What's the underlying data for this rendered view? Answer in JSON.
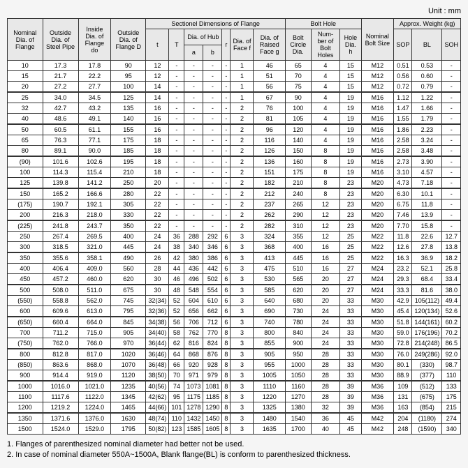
{
  "unit": "Unit : mm",
  "headers": {
    "nominal": "Nominal Dia. of Flange",
    "outside_pipe": "Outside Dia. of Steel Pipe",
    "inside": "Inside Dia. of Flange do",
    "outside_flange": "Outside Dia. of Flange D",
    "sectional": "Sectionel Dimensions of Flange",
    "bolthole": "Bolt Hole",
    "nominal_bolt": "Nominal Bolt Size",
    "approx": "Approx. Weight (kg)",
    "t": "t",
    "T": "T",
    "hub": "Dia. of Hub",
    "a": "a",
    "b": "b",
    "r": "r",
    "face": "Dia. of Face f",
    "raised": "Dia. of Raised Face g",
    "circle": "Bolt Circle Dia.",
    "num": "Num-ber of Bolt Holes",
    "holedia": "Hole Dia. h",
    "sop": "SOP",
    "bl": "BL",
    "soh": "SOH"
  },
  "rows": [
    [
      "10",
      "17.3",
      "17.8",
      "90",
      "12",
      "-",
      "-",
      "-",
      "-",
      "1",
      "46",
      "65",
      "4",
      "15",
      "M12",
      "0.51",
      "0.53",
      "-"
    ],
    [
      "15",
      "21.7",
      "22.2",
      "95",
      "12",
      "-",
      "-",
      "-",
      "-",
      "1",
      "51",
      "70",
      "4",
      "15",
      "M12",
      "0.56",
      "0.60",
      "-"
    ],
    [
      "20",
      "27.2",
      "27.7",
      "100",
      "14",
      "-",
      "-",
      "-",
      "-",
      "1",
      "56",
      "75",
      "4",
      "15",
      "M12",
      "0.72",
      "0.79",
      "-"
    ],
    [
      "25",
      "34.0",
      "34.5",
      "125",
      "14",
      "-",
      "-",
      "-",
      "-",
      "1",
      "67",
      "90",
      "4",
      "19",
      "M16",
      "1.12",
      "1.22",
      "-"
    ],
    [
      "32",
      "42.7",
      "43.2",
      "135",
      "16",
      "-",
      "-",
      "-",
      "-",
      "2",
      "76",
      "100",
      "4",
      "19",
      "M16",
      "1.47",
      "1.66",
      "-"
    ],
    [
      "40",
      "48.6",
      "49.1",
      "140",
      "16",
      "-",
      "-",
      "-",
      "-",
      "2",
      "81",
      "105",
      "4",
      "19",
      "M16",
      "1.55",
      "1.79",
      "-"
    ],
    [
      "50",
      "60.5",
      "61.1",
      "155",
      "16",
      "-",
      "-",
      "-",
      "-",
      "2",
      "96",
      "120",
      "4",
      "19",
      "M16",
      "1.86",
      "2.23",
      "-"
    ],
    [
      "65",
      "76.3",
      "77.1",
      "175",
      "18",
      "-",
      "-",
      "-",
      "-",
      "2",
      "116",
      "140",
      "4",
      "19",
      "M16",
      "2.58",
      "3.24",
      "-"
    ],
    [
      "80",
      "89.1",
      "90.0",
      "185",
      "18",
      "-",
      "-",
      "-",
      "-",
      "2",
      "126",
      "150",
      "8",
      "19",
      "M16",
      "2.58",
      "3.48",
      "-"
    ],
    [
      "(90)",
      "101.6",
      "102.6",
      "195",
      "18",
      "-",
      "-",
      "-",
      "-",
      "2",
      "136",
      "160",
      "8",
      "19",
      "M16",
      "2.73",
      "3.90",
      "-"
    ],
    [
      "100",
      "114.3",
      "115.4",
      "210",
      "18",
      "-",
      "-",
      "-",
      "-",
      "2",
      "151",
      "175",
      "8",
      "19",
      "M16",
      "3.10",
      "4.57",
      "-"
    ],
    [
      "125",
      "139.8",
      "141.2",
      "250",
      "20",
      "-",
      "-",
      "-",
      "-",
      "2",
      "182",
      "210",
      "8",
      "23",
      "M20",
      "4.73",
      "7.18",
      "-"
    ],
    [
      "150",
      "165.2",
      "166.6",
      "280",
      "22",
      "-",
      "-",
      "-",
      "-",
      "2",
      "212",
      "240",
      "8",
      "23",
      "M20",
      "6.30",
      "10.1",
      "-"
    ],
    [
      "(175)",
      "190.7",
      "192.1",
      "305",
      "22",
      "-",
      "-",
      "-",
      "-",
      "2",
      "237",
      "265",
      "12",
      "23",
      "M20",
      "6.75",
      "11.8",
      "-"
    ],
    [
      "200",
      "216.3",
      "218.0",
      "330",
      "22",
      "-",
      "-",
      "-",
      "-",
      "2",
      "262",
      "290",
      "12",
      "23",
      "M20",
      "7.46",
      "13.9",
      "-"
    ],
    [
      "(225)",
      "241.8",
      "243.7",
      "350",
      "22",
      "-",
      "-",
      "-",
      "-",
      "2",
      "282",
      "310",
      "12",
      "23",
      "M20",
      "7.70",
      "15.8",
      "-"
    ],
    [
      "250",
      "267.4",
      "269.5",
      "400",
      "24",
      "36",
      "288",
      "292",
      "6",
      "3",
      "324",
      "355",
      "12",
      "25",
      "M22",
      "11.8",
      "22.6",
      "12.7"
    ],
    [
      "300",
      "318.5",
      "321.0",
      "445",
      "24",
      "38",
      "340",
      "346",
      "6",
      "3",
      "368",
      "400",
      "16",
      "25",
      "M22",
      "12.6",
      "27.8",
      "13.8"
    ],
    [
      "350",
      "355.6",
      "358.1",
      "490",
      "26",
      "42",
      "380",
      "386",
      "6",
      "3",
      "413",
      "445",
      "16",
      "25",
      "M22",
      "16.3",
      "36.9",
      "18.2"
    ],
    [
      "400",
      "406.4",
      "409.0",
      "560",
      "28",
      "44",
      "436",
      "442",
      "6",
      "3",
      "475",
      "510",
      "16",
      "27",
      "M24",
      "23.2",
      "52.1",
      "25.8"
    ],
    [
      "450",
      "457.2",
      "460.0",
      "620",
      "30",
      "46",
      "496",
      "502",
      "6",
      "3",
      "530",
      "565",
      "20",
      "27",
      "M24",
      "29.3",
      "68.4",
      "33.4"
    ],
    [
      "500",
      "508.0",
      "511.0",
      "675",
      "30",
      "48",
      "548",
      "554",
      "6",
      "3",
      "585",
      "620",
      "20",
      "27",
      "M24",
      "33.3",
      "81.6",
      "38.0"
    ],
    [
      "(550)",
      "558.8",
      "562.0",
      "745",
      "32(34)",
      "52",
      "604",
      "610",
      "6",
      "3",
      "640",
      "680",
      "20",
      "33",
      "M30",
      "42.9",
      "105(112)",
      "49.4"
    ],
    [
      "600",
      "609.6",
      "613.0",
      "795",
      "32(36)",
      "52",
      "656",
      "662",
      "6",
      "3",
      "690",
      "730",
      "24",
      "33",
      "M30",
      "45.4",
      "120(134)",
      "52.6"
    ],
    [
      "(650)",
      "660.4",
      "664.0",
      "845",
      "34(38)",
      "56",
      "706",
      "712",
      "6",
      "3",
      "740",
      "780",
      "24",
      "33",
      "M30",
      "51.8",
      "144(161)",
      "60.2"
    ],
    [
      "700",
      "711.2",
      "715.0",
      "905",
      "34(40)",
      "58",
      "762",
      "770",
      "8",
      "3",
      "800",
      "840",
      "24",
      "33",
      "M30",
      "59.0",
      "176(196)",
      "70.2"
    ],
    [
      "(750)",
      "762.0",
      "766.0",
      "970",
      "36(44)",
      "62",
      "816",
      "824",
      "8",
      "3",
      "855",
      "900",
      "24",
      "33",
      "M30",
      "72.8",
      "214(248)",
      "86.5"
    ],
    [
      "800",
      "812.8",
      "817.0",
      "1020",
      "36(46)",
      "64",
      "868",
      "876",
      "8",
      "3",
      "905",
      "950",
      "28",
      "33",
      "M30",
      "76.0",
      "249(286)",
      "92.0"
    ],
    [
      "(850)",
      "863.6",
      "868.0",
      "1070",
      "36(48)",
      "66",
      "920",
      "928",
      "8",
      "3",
      "955",
      "1000",
      "28",
      "33",
      "M30",
      "80.1",
      "(330)",
      "98.7"
    ],
    [
      "900",
      "914.4",
      "919.0",
      "1120",
      "38(50)",
      "70",
      "971",
      "979",
      "8",
      "3",
      "1005",
      "1050",
      "28",
      "33",
      "M30",
      "88.9",
      "(377)",
      "110"
    ],
    [
      "1000",
      "1016.0",
      "1021.0",
      "1235",
      "40(56)",
      "74",
      "1073",
      "1081",
      "8",
      "3",
      "1110",
      "1160",
      "28",
      "39",
      "M36",
      "109",
      "(512)",
      "133"
    ],
    [
      "1100",
      "1117.6",
      "1122.0",
      "1345",
      "42(62)",
      "95",
      "1175",
      "1185",
      "8",
      "3",
      "1220",
      "1270",
      "28",
      "39",
      "M36",
      "131",
      "(675)",
      "175"
    ],
    [
      "1200",
      "1219.2",
      "1224.0",
      "1465",
      "44(66)",
      "101",
      "1278",
      "1290",
      "8",
      "3",
      "1325",
      "1380",
      "32",
      "39",
      "M36",
      "163",
      "(854)",
      "215"
    ],
    [
      "1350",
      "1371.6",
      "1376.0",
      "1630",
      "48(74)",
      "110",
      "1432",
      "1450",
      "8",
      "3",
      "1480",
      "1540",
      "36",
      "45",
      "M42",
      "204",
      "(1180)",
      "274"
    ],
    [
      "1500",
      "1524.0",
      "1529.0",
      "1795",
      "50(82)",
      "123",
      "1585",
      "1605",
      "8",
      "3",
      "1635",
      "1700",
      "40",
      "45",
      "M42",
      "248",
      "(1590)",
      "340"
    ]
  ],
  "groups": [
    0,
    3,
    6,
    9,
    12,
    15,
    18,
    21,
    24,
    27,
    30,
    33,
    35
  ],
  "notes": [
    "1. Flanges of parenthesized nominal diameter had better not be used.",
    "2. In case of nominal diameter 550A~1500A, Blank flange(BL) is conform to parenthesized thickness."
  ]
}
